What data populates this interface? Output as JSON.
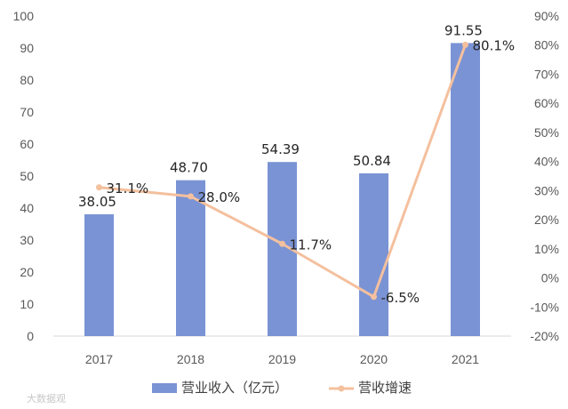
{
  "chart_data": {
    "type": "bar+line",
    "categories": [
      "2017",
      "2018",
      "2019",
      "2020",
      "2021"
    ],
    "series": [
      {
        "name": "营业收入（亿元）",
        "type": "bar",
        "axis": "left",
        "values": [
          38.05,
          48.7,
          54.39,
          50.84,
          91.55
        ],
        "labels": [
          "38.05",
          "48.70",
          "54.39",
          "50.84",
          "91.55"
        ],
        "color": "#7a93d4"
      },
      {
        "name": "营收增速",
        "type": "line",
        "axis": "right",
        "values": [
          31.1,
          28.0,
          11.7,
          -6.5,
          80.1
        ],
        "labels": [
          "31.1%",
          "28.0%",
          "11.7%",
          "-6.5%",
          "80.1%"
        ],
        "color": "#f4c09e"
      }
    ],
    "left_axis": {
      "min": 0,
      "max": 100,
      "step": 10,
      "ticks": [
        "0",
        "10",
        "20",
        "30",
        "40",
        "50",
        "60",
        "70",
        "80",
        "90",
        "100"
      ]
    },
    "right_axis": {
      "min": -20,
      "max": 90,
      "step": 10,
      "ticks": [
        "-20%",
        "-10%",
        "0%",
        "10%",
        "20%",
        "30%",
        "40%",
        "50%",
        "60%",
        "70%",
        "80%",
        "90%"
      ]
    },
    "legend_position": "bottom",
    "grid": false
  },
  "watermark": "大数据观"
}
